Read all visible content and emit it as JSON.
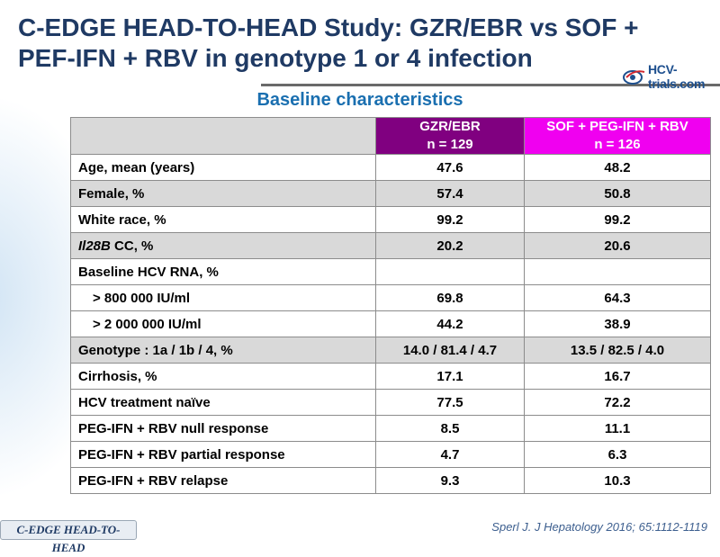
{
  "title": "C-EDGE HEAD-TO-HEAD Study: GZR/EBR vs SOF + PEF-IFN + RBV in genotype 1 or 4 infection",
  "logo": {
    "text": "HCV-trials.com",
    "icon": "hcv-trials-logo-icon"
  },
  "subtitle": "Baseline characteristics",
  "table": {
    "header": {
      "gzr_name": "GZR/EBR",
      "gzr_n": "n = 129",
      "sof_name": "SOF + PEG-IFN + RBV",
      "sof_n": "n = 126"
    },
    "rows": [
      {
        "label_italic": "",
        "label": "Age, mean (years)",
        "gzr": "47.6",
        "sof": "48.2"
      },
      {
        "label_italic": "",
        "label": "Female, %",
        "gzr": "57.4",
        "sof": "50.8"
      },
      {
        "label_italic": "",
        "label": "White race, %",
        "gzr": "99.2",
        "sof": "99.2"
      },
      {
        "label_italic": "Il28B",
        "label": " CC, %",
        "gzr": "20.2",
        "sof": "20.6"
      },
      {
        "label_italic": "",
        "label": "Baseline HCV RNA, %",
        "gzr": "",
        "sof": ""
      },
      {
        "label_italic": "",
        "label": "> 800 000 IU/ml",
        "gzr": "69.8",
        "sof": "64.3"
      },
      {
        "label_italic": "",
        "label": "> 2 000 000 IU/ml",
        "gzr": "44.2",
        "sof": "38.9"
      },
      {
        "label_italic": "",
        "label": "Genotype : 1a / 1b / 4, %",
        "gzr": "14.0 / 81.4 / 4.7",
        "sof": "13.5 / 82.5 / 4.0"
      },
      {
        "label_italic": "",
        "label": "Cirrhosis, %",
        "gzr": "17.1",
        "sof": "16.7"
      },
      {
        "label_italic": "",
        "label": "HCV treatment naïve",
        "gzr": "77.5",
        "sof": "72.2"
      },
      {
        "label_italic": "",
        "label": "PEG-IFN + RBV null response",
        "gzr": "8.5",
        "sof": "11.1"
      },
      {
        "label_italic": "",
        "label": "PEG-IFN + RBV partial response",
        "gzr": "4.7",
        "sof": "6.3"
      },
      {
        "label_italic": "",
        "label": "PEG-IFN + RBV relapse",
        "gzr": "9.3",
        "sof": "10.3"
      }
    ]
  },
  "footer": {
    "tag": "C-EDGE HEAD-TO-HEAD",
    "citation": "Sperl J. J Hepatology 2016; 65:1112-1119"
  },
  "colors": {
    "title": "#1f3a64",
    "subtitle": "#1a6fb0",
    "gzr_header": "#800080",
    "sof_header": "#f000f0",
    "shaded_row": "#d9d9d9"
  }
}
